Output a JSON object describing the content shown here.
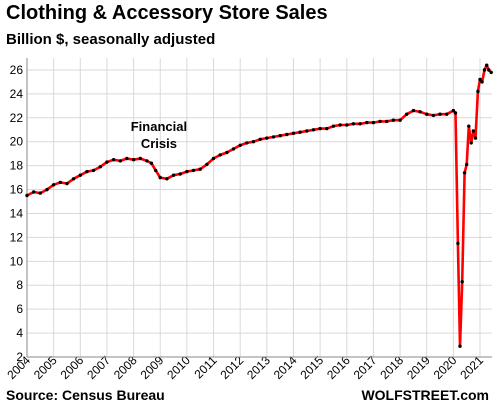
{
  "chart_data": {
    "type": "line",
    "title": "Clothing & Accessory Store Sales",
    "subtitle": "Billion $, seasonally adjusted",
    "xlabel": "",
    "ylabel": "",
    "ylim": [
      2,
      27
    ],
    "yticks": [
      2,
      4,
      6,
      8,
      10,
      12,
      14,
      16,
      18,
      20,
      22,
      24,
      26
    ],
    "xlim": [
      2004,
      2021.45
    ],
    "xticks": [
      "2004",
      "2005",
      "2006",
      "2007",
      "2008",
      "2009",
      "2010",
      "2011",
      "2012",
      "2013",
      "2014",
      "2015",
      "2016",
      "2017",
      "2018",
      "2019",
      "2020",
      "2021"
    ],
    "grid": true,
    "annotations": [
      {
        "text": "Financial Crisis",
        "lines": [
          "Financial",
          "Crisis"
        ]
      }
    ],
    "line_color": "#ff0000",
    "marker_color": "#000000",
    "series": [
      {
        "name": "",
        "x": [
          2004.0,
          2004.25,
          2004.5,
          2004.75,
          2005.0,
          2005.25,
          2005.5,
          2005.75,
          2006.0,
          2006.25,
          2006.5,
          2006.75,
          2007.0,
          2007.25,
          2007.5,
          2007.75,
          2008.0,
          2008.25,
          2008.5,
          2008.67,
          2008.83,
          2009.0,
          2009.25,
          2009.5,
          2009.75,
          2010.0,
          2010.25,
          2010.5,
          2010.75,
          2011.0,
          2011.25,
          2011.5,
          2011.75,
          2012.0,
          2012.25,
          2012.5,
          2012.75,
          2013.0,
          2013.25,
          2013.5,
          2013.75,
          2014.0,
          2014.25,
          2014.5,
          2014.75,
          2015.0,
          2015.25,
          2015.5,
          2015.75,
          2016.0,
          2016.25,
          2016.5,
          2016.75,
          2017.0,
          2017.25,
          2017.5,
          2017.75,
          2018.0,
          2018.25,
          2018.5,
          2018.75,
          2019.0,
          2019.25,
          2019.5,
          2019.75,
          2020.0,
          2020.08,
          2020.17,
          2020.25,
          2020.33,
          2020.42,
          2020.5,
          2020.58,
          2020.67,
          2020.75,
          2020.83,
          2020.92,
          2021.0,
          2021.08,
          2021.17,
          2021.25,
          2021.33,
          2021.42
        ],
        "y": [
          15.5,
          15.8,
          15.7,
          16.0,
          16.4,
          16.6,
          16.5,
          16.9,
          17.2,
          17.5,
          17.6,
          17.9,
          18.3,
          18.5,
          18.4,
          18.6,
          18.5,
          18.6,
          18.4,
          18.2,
          17.6,
          17.0,
          16.9,
          17.2,
          17.3,
          17.5,
          17.6,
          17.7,
          18.1,
          18.6,
          18.9,
          19.1,
          19.4,
          19.7,
          19.9,
          20.0,
          20.2,
          20.3,
          20.4,
          20.5,
          20.6,
          20.7,
          20.8,
          20.9,
          21.0,
          21.1,
          21.1,
          21.3,
          21.4,
          21.4,
          21.5,
          21.5,
          21.6,
          21.6,
          21.7,
          21.7,
          21.8,
          21.8,
          22.3,
          22.6,
          22.5,
          22.3,
          22.2,
          22.3,
          22.3,
          22.6,
          22.4,
          11.5,
          2.9,
          8.3,
          17.4,
          18.1,
          21.3,
          19.9,
          20.9,
          20.3,
          24.2,
          25.2,
          25.0,
          26.0,
          26.4,
          26.0,
          25.8
        ]
      }
    ]
  },
  "footer": {
    "source": "Source: Census Bureau",
    "brand": "WOLFSTREET.com"
  }
}
